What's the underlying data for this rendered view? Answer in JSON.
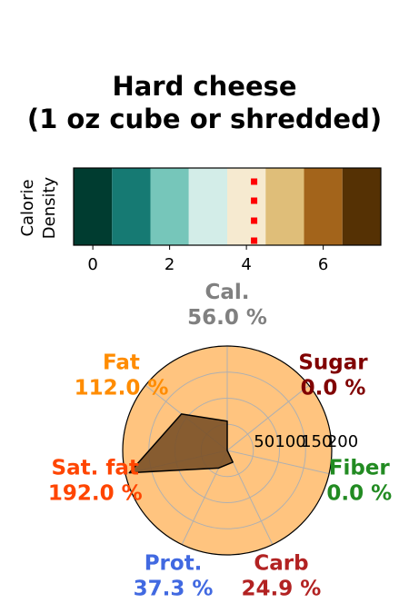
{
  "chart_data": [
    {
      "type": "heatmap",
      "title": "Hard cheese\n(1 oz cube or shredded)",
      "ylabel": "Calorie\nDensity",
      "xticks": [
        0,
        2,
        4,
        6
      ],
      "xlim": [
        -0.5,
        7.5
      ],
      "cells": [
        0,
        1,
        2,
        3,
        4,
        5,
        6,
        7
      ],
      "colors": [
        "#003c30",
        "#167a73",
        "#76c6ba",
        "#d3ede8",
        "#f6ead0",
        "#dfbe79",
        "#a3641b",
        "#553104"
      ],
      "marker": {
        "x": 4.2,
        "color": "#ff0000"
      }
    },
    {
      "type": "radar",
      "rlim": [
        0,
        200
      ],
      "rticks": [
        "50",
        "100",
        "150",
        "200"
      ],
      "fill_color": "#ffc47f",
      "polygon_color": "#7a5128",
      "axes": [
        {
          "name": "Cal.",
          "label": "56.0 %",
          "value": 56.0,
          "color": "#808080"
        },
        {
          "name": "Sugar",
          "label": "0.0 %",
          "value": 0.0,
          "color": "#800000"
        },
        {
          "name": "Fiber",
          "label": "0.0 %",
          "value": 0.0,
          "color": "#228b22"
        },
        {
          "name": "Carb",
          "label": "24.9 %",
          "value": 24.9,
          "color": "#b22222"
        },
        {
          "name": "Prot.",
          "label": "37.3 %",
          "value": 37.3,
          "color": "#4169e1"
        },
        {
          "name": "Sat. fat",
          "label": "192.0 %",
          "value": 192.0,
          "color": "#ff4500"
        },
        {
          "name": "Fat",
          "label": "112.0 %",
          "value": 112.0,
          "color": "#ff8c00"
        }
      ]
    }
  ]
}
